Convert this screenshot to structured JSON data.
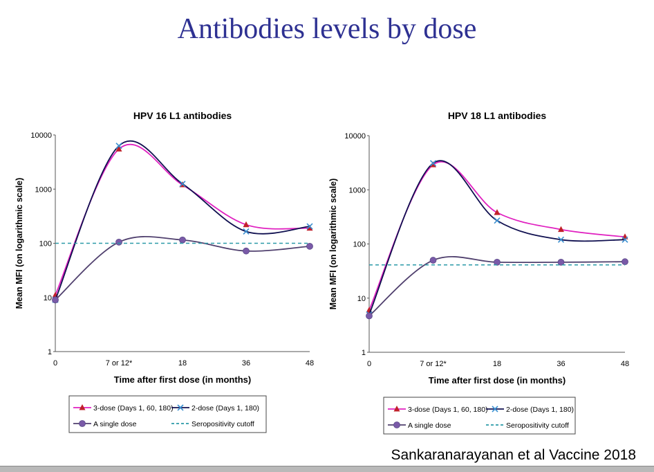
{
  "slide": {
    "title": "Antibodies levels by dose",
    "source": "Sankaranarayanan et al  Vaccine 2018"
  },
  "chart_data": [
    {
      "type": "line",
      "title": "HPV 16 L1 antibodies",
      "xlabel": "Time after first dose (in months)",
      "ylabel": "Mean MFI (on logarithmic scale)",
      "y_scale": "log",
      "ylim": [
        1,
        10000
      ],
      "yticks": [
        "1",
        "10",
        "100",
        "1000",
        "10000"
      ],
      "categories": [
        "0",
        "7 or 12*",
        "18",
        "36",
        "48"
      ],
      "legend_placement": "bottom",
      "series": [
        {
          "name": "3-dose (Days 1, 60, 180)",
          "color": "#e020c0",
          "marker": "triangle",
          "marker_color": "#c0202a",
          "values": [
            11,
            5500,
            1200,
            220,
            190
          ]
        },
        {
          "name": "2-dose (Days 1, 180)",
          "color": "#101050",
          "marker": "x",
          "marker_color": "#3a8fd0",
          "values": [
            9,
            6300,
            1250,
            165,
            205
          ]
        },
        {
          "name": "A single dose",
          "color": "#50406e",
          "marker": "circle",
          "marker_color": "#7a5aa8",
          "values": [
            9,
            105,
            115,
            72,
            88
          ]
        },
        {
          "name": "Seropositivity cutoff",
          "color": "#2a9aa8",
          "dashed": true,
          "value": 100
        }
      ]
    },
    {
      "type": "line",
      "title": "HPV 18 L1 antibodies",
      "xlabel": "Time after first dose (in months)",
      "ylabel": "Mean MFI (on logarithmic scale)",
      "y_scale": "log",
      "ylim": [
        1,
        10000
      ],
      "yticks": [
        "1",
        "10",
        "100",
        "1000",
        "10000"
      ],
      "categories": [
        "0",
        "7 or 12*",
        "18",
        "36",
        "48"
      ],
      "legend_placement": "bottom",
      "series": [
        {
          "name": "3-dose (Days 1, 60, 180)",
          "color": "#e020c0",
          "marker": "triangle",
          "marker_color": "#c0202a",
          "values": [
            6,
            2900,
            380,
            185,
            135
          ]
        },
        {
          "name": "2-dose (Days 1, 180)",
          "color": "#101050",
          "marker": "x",
          "marker_color": "#3a8fd0",
          "values": [
            5,
            3100,
            270,
            120,
            120
          ]
        },
        {
          "name": "A single dose",
          "color": "#50406e",
          "marker": "circle",
          "marker_color": "#7a5aa8",
          "values": [
            4.7,
            50,
            46,
            46,
            47
          ]
        },
        {
          "name": "Seropositivity cutoff",
          "color": "#2a9aa8",
          "dashed": true,
          "value": 41
        }
      ]
    }
  ]
}
